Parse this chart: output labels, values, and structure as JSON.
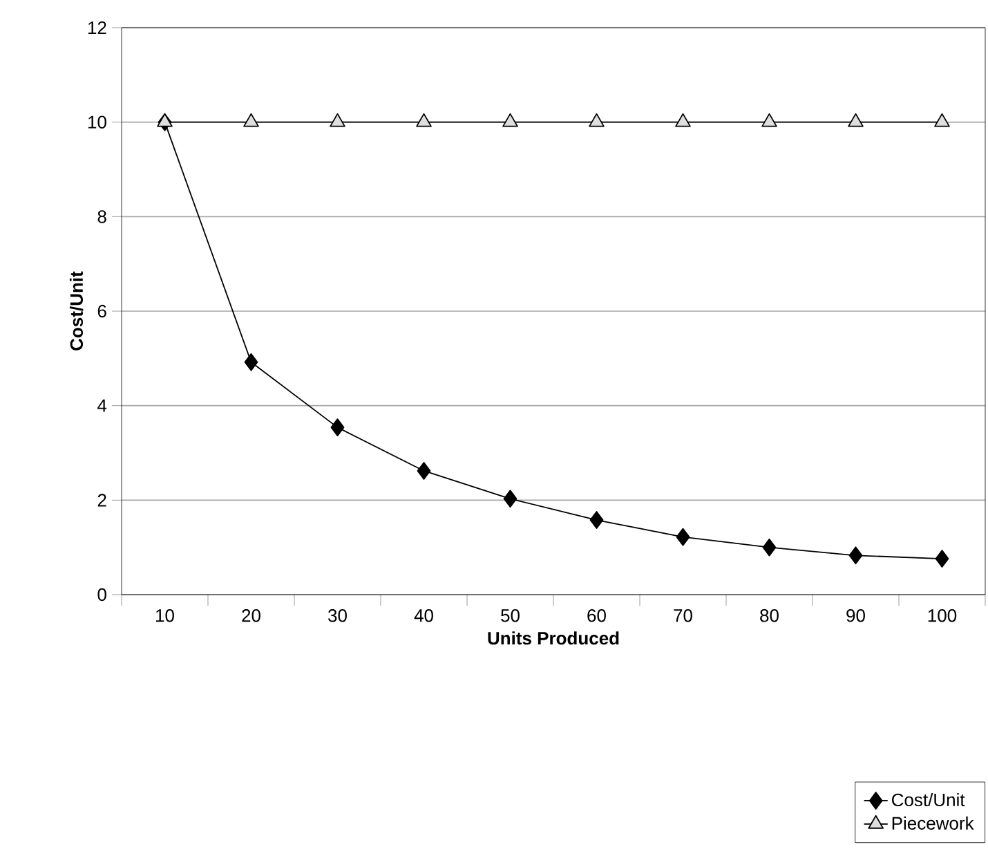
{
  "chart_data": {
    "type": "line",
    "xlabel": "Units Produced",
    "ylabel": "Cost/Unit",
    "categories": [
      "10",
      "20",
      "30",
      "40",
      "50",
      "60",
      "70",
      "80",
      "90",
      "100"
    ],
    "series": [
      {
        "name": "Cost/Unit",
        "color": "#000000",
        "marker": "diamond",
        "values": [
          10,
          4.92,
          3.54,
          2.62,
          2.03,
          1.58,
          1.22,
          1.0,
          0.83,
          0.76
        ]
      },
      {
        "name": "Piecework",
        "color": "#000000",
        "marker": "triangle",
        "values": [
          10,
          10,
          10,
          10,
          10,
          10,
          10,
          10,
          10,
          10
        ]
      }
    ],
    "ylim": [
      0,
      12
    ],
    "yticks": [
      0,
      2,
      4,
      6,
      8,
      10,
      12
    ],
    "grid": "y",
    "legend": "bottom right",
    "line_style": "solid"
  }
}
